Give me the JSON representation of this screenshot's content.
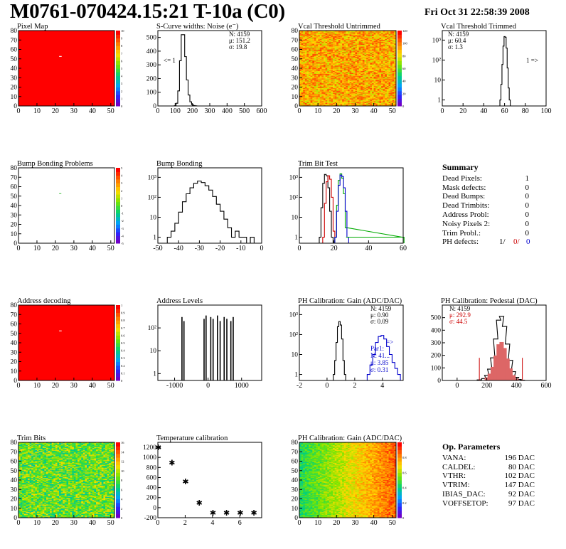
{
  "header": {
    "title": "M0761-070424.15:21 T-10a (C0)",
    "datestamp": "Fri Oct 31 22:58:39 2008"
  },
  "summary": {
    "heading": "Summary",
    "rows": [
      {
        "label": "Dead Pixels:",
        "value": "1"
      },
      {
        "label": "Mask defects:",
        "value": "0"
      },
      {
        "label": "Dead Bumps:",
        "value": "0"
      },
      {
        "label": "Dead Trimbits:",
        "value": "0"
      },
      {
        "label": "Address Probl:",
        "value": "0"
      },
      {
        "label": "Noisy Pixels 2:",
        "value": "0"
      },
      {
        "label": "Trim Probl.:",
        "value": "0"
      }
    ],
    "ph_defects": {
      "label": "PH defects:",
      "values": [
        "1/",
        "0/",
        "0"
      ],
      "colors": [
        "#000000",
        "#cc0000",
        "#0000cc"
      ]
    }
  },
  "op_params": {
    "heading": "Op. Parameters",
    "rows": [
      {
        "label": "VANA:",
        "value": "196 DAC"
      },
      {
        "label": "CALDEL:",
        "value": "80 DAC"
      },
      {
        "label": "VTHR:",
        "value": "102 DAC"
      },
      {
        "label": "VTRIM:",
        "value": "147 DAC"
      },
      {
        "label": "IBIAS_DAC:",
        "value": "92 DAC"
      },
      {
        "label": "VOFFSETOP:",
        "value": "97 DAC"
      }
    ]
  },
  "colors": {
    "hist_line": "#000000",
    "blue_series": "#0000cc",
    "green_series": "#00aa00",
    "red_series": "#cc0000",
    "map_red": "#ff0000"
  },
  "chart_data": [
    {
      "id": "pixel_map",
      "type": "heatmap",
      "title": "Pixel Map",
      "xlim": [
        0,
        52
      ],
      "ylim": [
        0,
        80
      ],
      "xticks": [
        "0",
        "10",
        "20",
        "30",
        "40",
        "50"
      ],
      "yticks": [
        "0",
        "10",
        "20",
        "30",
        "40",
        "50",
        "60",
        "70",
        "80"
      ],
      "fill": "uniform",
      "dominant_value": 10,
      "dead_pixels": [
        {
          "col": 22,
          "row": 52
        }
      ],
      "zlim": [
        0,
        10
      ],
      "zticks": [
        "0",
        "1",
        "2",
        "3",
        "4",
        "5",
        "6",
        "7",
        "8",
        "9",
        "10"
      ]
    },
    {
      "id": "scurve_noise",
      "type": "line",
      "title": "S-Curve widths: Noise (e⁻)",
      "xlim": [
        0,
        600
      ],
      "ylim": [
        0,
        550
      ],
      "log_y": false,
      "xticks": [
        "0",
        "100",
        "200",
        "300",
        "400",
        "500",
        "600"
      ],
      "yticks": [
        "0",
        "100",
        "200",
        "300",
        "400",
        "500"
      ],
      "stats": [
        "N: 4159",
        "μ: 151.2",
        "σ: 19.8"
      ],
      "annotation": "<= 1",
      "x": [
        100,
        110,
        120,
        130,
        140,
        150,
        160,
        170,
        180,
        190,
        200,
        210,
        220
      ],
      "y": [
        2,
        20,
        110,
        330,
        520,
        520,
        360,
        190,
        80,
        30,
        10,
        3,
        1
      ]
    },
    {
      "id": "vcal_untrimmed",
      "type": "heatmap",
      "title": "Vcal Threshold Untrimmed",
      "xlim": [
        0,
        52
      ],
      "ylim": [
        0,
        80
      ],
      "xticks": [
        "0",
        "10",
        "20",
        "30",
        "40",
        "50"
      ],
      "yticks": [
        "0",
        "10",
        "20",
        "30",
        "40",
        "50",
        "60",
        "70",
        "80"
      ],
      "fill": "noise",
      "zlim": [
        0,
        140
      ],
      "zticks": [
        "0",
        "20",
        "40",
        "60",
        "80",
        "100",
        "120"
      ]
    },
    {
      "id": "vcal_trimmed",
      "type": "line",
      "title": "Vcal Threshold Trimmed",
      "xlim": [
        0,
        100
      ],
      "ylim": [
        0.5,
        3000
      ],
      "log_y": true,
      "xticks": [
        "0",
        "20",
        "40",
        "60",
        "80",
        "100"
      ],
      "yticks": [
        "1",
        "10",
        "10²",
        "10³"
      ],
      "stats": [
        "N: 4159",
        "μ: 60.4",
        "σ:  1.3"
      ],
      "annotation": "1 =>",
      "x": [
        56,
        57,
        58,
        59,
        60,
        61,
        62,
        63,
        64,
        65
      ],
      "y": [
        1,
        6,
        60,
        500,
        1500,
        1400,
        400,
        40,
        4,
        1
      ]
    },
    {
      "id": "bump_bonding_problems",
      "type": "heatmap",
      "title": "Bump Bonding Problems",
      "xlim": [
        0,
        52
      ],
      "ylim": [
        0,
        80
      ],
      "xticks": [
        "0",
        "10",
        "20",
        "30",
        "40",
        "50"
      ],
      "yticks": [
        "0",
        "10",
        "20",
        "30",
        "40",
        "50",
        "60",
        "70",
        "80"
      ],
      "fill": "empty",
      "marks": [
        {
          "col": 22,
          "row": 52
        }
      ],
      "zlim": [
        -5,
        5
      ],
      "zticks": [
        "-5",
        "-4",
        "-3",
        "-2",
        "-1",
        "0",
        "1",
        "2",
        "3",
        "4",
        "5"
      ]
    },
    {
      "id": "bump_bonding",
      "type": "line",
      "title": "Bump Bonding",
      "xlim": [
        -50,
        5
      ],
      "ylim": [
        0.5,
        3000
      ],
      "log_y": true,
      "xticks": [
        "-50",
        "-40",
        "-30",
        "-20",
        "-10",
        "0"
      ],
      "yticks": [
        "1",
        "10",
        "10²",
        "10³"
      ],
      "x": [
        -44,
        -42,
        -40,
        -38,
        -36,
        -34,
        -32,
        -30,
        -28,
        -26,
        -24,
        -22,
        -20,
        -18,
        -16,
        -14,
        -12,
        -10,
        -8,
        -6,
        -4,
        -2,
        0
      ],
      "y": [
        1,
        2,
        5,
        18,
        60,
        150,
        300,
        500,
        650,
        550,
        380,
        230,
        110,
        45,
        20,
        8,
        3,
        1,
        2,
        1,
        1,
        0,
        1
      ]
    },
    {
      "id": "trim_bit_test",
      "type": "line",
      "title": "Trim Bit Test",
      "xlim": [
        0,
        60
      ],
      "ylim": [
        0.5,
        3000
      ],
      "log_y": true,
      "xticks": [
        "0",
        "20",
        "40",
        "60"
      ],
      "yticks": [
        "1",
        "10",
        "10²",
        "10³"
      ],
      "series": [
        {
          "color": "#000000",
          "x": [
            12,
            13,
            14,
            15,
            16,
            17,
            18,
            19
          ],
          "y": [
            1,
            30,
            500,
            1400,
            1200,
            300,
            20,
            1
          ]
        },
        {
          "color": "#cc0000",
          "x": [
            14,
            15,
            16,
            17,
            18,
            19,
            20
          ],
          "y": [
            1,
            50,
            600,
            1200,
            800,
            100,
            2
          ]
        },
        {
          "color": "#00aa00",
          "x": [
            21,
            22,
            23,
            24,
            25,
            26,
            27,
            60
          ],
          "y": [
            1,
            40,
            700,
            1500,
            900,
            150,
            3,
            1
          ]
        },
        {
          "color": "#0000cc",
          "x": [
            21,
            22,
            23,
            24,
            25,
            26,
            27,
            28
          ],
          "y": [
            1,
            20,
            400,
            1300,
            1100,
            300,
            20,
            1
          ]
        }
      ]
    },
    {
      "id": "address_decoding",
      "type": "heatmap",
      "title": "Address decoding",
      "xlim": [
        0,
        52
      ],
      "ylim": [
        0,
        80
      ],
      "xticks": [
        "0",
        "10",
        "20",
        "30",
        "40",
        "50"
      ],
      "yticks": [
        "0",
        "10",
        "20",
        "30",
        "40",
        "50",
        "60",
        "70",
        "80"
      ],
      "fill": "uniform",
      "dominant_value": 1,
      "dead_pixels": [
        {
          "col": 22,
          "row": 52
        }
      ],
      "zlim": [
        0,
        1
      ],
      "zticks": [
        "0",
        "0.1",
        "0.2",
        "0.3",
        "0.4",
        "0.5",
        "0.6",
        "0.7",
        "0.8",
        "0.9",
        "1"
      ]
    },
    {
      "id": "address_levels",
      "type": "bar",
      "title": "Address Levels",
      "xlim": [
        -1500,
        1600
      ],
      "ylim": [
        0.5,
        1000
      ],
      "log_y": true,
      "xticks": [
        "-1000",
        "0",
        "1000"
      ],
      "yticks": [
        "1",
        "10",
        "10²"
      ],
      "peaks": [
        -780,
        -720,
        -120,
        -60,
        80,
        150,
        280,
        360,
        480,
        560,
        680,
        750
      ],
      "peak_heights": [
        300,
        200,
        250,
        350,
        300,
        250,
        350,
        200,
        300,
        250,
        200,
        300
      ]
    },
    {
      "id": "ph_gain",
      "type": "line",
      "title": "PH Calibration: Gain (ADC/DAC)",
      "xlim": [
        -2,
        5.5
      ],
      "ylim": [
        0.5,
        3000
      ],
      "log_y": true,
      "xticks": [
        "-2",
        "0",
        "2",
        "4"
      ],
      "yticks": [
        "1",
        "10",
        "10²",
        "10³"
      ],
      "stats": [
        "N: 4159",
        "μ: 0.90",
        "σ: 0.09"
      ],
      "stats_blue": [
        "Par1:",
        "N: 41...",
        "μ: 3.85",
        "σ: 0.31"
      ],
      "annotation": "=>",
      "series": [
        {
          "color": "#000000",
          "x": [
            0.5,
            0.6,
            0.7,
            0.8,
            0.9,
            1.0,
            1.1,
            1.2,
            1.3
          ],
          "y": [
            1,
            5,
            40,
            250,
            450,
            300,
            60,
            5,
            1
          ]
        },
        {
          "color": "#0000cc",
          "x": [
            3.0,
            3.2,
            3.4,
            3.6,
            3.8,
            4.0,
            4.2,
            4.4,
            4.6,
            4.8,
            5.0,
            5.2
          ],
          "y": [
            1,
            3,
            10,
            40,
            80,
            90,
            60,
            25,
            10,
            4,
            2,
            1
          ]
        }
      ]
    },
    {
      "id": "ph_pedestal",
      "type": "line",
      "title": "PH Calibration: Pedestal (DAC)",
      "xlim": [
        -100,
        600
      ],
      "ylim": [
        0,
        600
      ],
      "log_y": false,
      "xticks": [
        "0",
        "200",
        "400",
        "600"
      ],
      "yticks": [
        "0",
        "100",
        "200",
        "300",
        "400",
        "500"
      ],
      "stats": [
        "N: 4159",
        "μ: 292.9",
        "σ: 44.5"
      ],
      "markers": [
        150,
        440
      ],
      "x": [
        150,
        180,
        200,
        220,
        240,
        260,
        280,
        300,
        320,
        340,
        360,
        380,
        400,
        420,
        440
      ],
      "y": [
        5,
        15,
        40,
        90,
        180,
        330,
        480,
        510,
        430,
        290,
        160,
        70,
        25,
        8,
        2
      ]
    },
    {
      "id": "trim_bits",
      "type": "heatmap",
      "title": "Trim Bits",
      "xlim": [
        0,
        52
      ],
      "ylim": [
        0,
        80
      ],
      "xticks": [
        "0",
        "10",
        "20",
        "30",
        "40",
        "50"
      ],
      "yticks": [
        "0",
        "10",
        "20",
        "30",
        "40",
        "50",
        "60",
        "70",
        "80"
      ],
      "fill": "noise_green",
      "zlim": [
        0,
        16
      ],
      "zticks": [
        "0",
        "2",
        "4",
        "6",
        "8",
        "10",
        "12",
        "14",
        "16"
      ]
    },
    {
      "id": "temperature_calibration",
      "type": "scatter",
      "title": "Temperature calibration",
      "xlim": [
        0,
        7.6
      ],
      "ylim": [
        -200,
        1300
      ],
      "log_y": false,
      "xticks": [
        "0",
        "2",
        "4",
        "6"
      ],
      "yticks": [
        "-200",
        "0",
        "200",
        "400",
        "600",
        "800",
        "1000",
        "1200"
      ],
      "x": [
        0,
        1,
        2,
        3,
        4,
        5,
        6,
        7
      ],
      "y": [
        1200,
        900,
        520,
        100,
        -100,
        -100,
        -100,
        -100
      ]
    },
    {
      "id": "ph_gain_map",
      "type": "heatmap",
      "title": "PH Calibration: Gain (ADC/DAC)",
      "xlim": [
        0,
        52
      ],
      "ylim": [
        0,
        80
      ],
      "xticks": [
        "0",
        "10",
        "20",
        "30",
        "40",
        "50"
      ],
      "yticks": [
        "0",
        "10",
        "20",
        "30",
        "40",
        "50",
        "60",
        "70",
        "80"
      ],
      "fill": "gradient",
      "zlim": [
        0,
        1
      ],
      "zticks": [
        "0",
        "0.2",
        "0.4",
        "0.6",
        "0.8",
        "1"
      ]
    }
  ]
}
